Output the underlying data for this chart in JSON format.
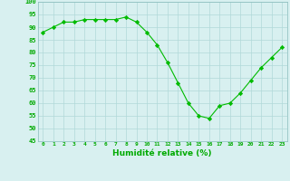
{
  "x": [
    0,
    1,
    2,
    3,
    4,
    5,
    6,
    7,
    8,
    9,
    10,
    11,
    12,
    13,
    14,
    15,
    16,
    17,
    18,
    19,
    20,
    21,
    22,
    23
  ],
  "y": [
    88,
    90,
    92,
    92,
    93,
    93,
    93,
    93,
    94,
    92,
    88,
    83,
    76,
    68,
    60,
    55,
    54,
    59,
    60,
    64,
    69,
    74,
    78,
    82
  ],
  "xlabel": "Humidité relative (%)",
  "ylim": [
    45,
    100
  ],
  "xlim": [
    -0.5,
    23.5
  ],
  "yticks": [
    45,
    50,
    55,
    60,
    65,
    70,
    75,
    80,
    85,
    90,
    95,
    100
  ],
  "xticks": [
    0,
    1,
    2,
    3,
    4,
    5,
    6,
    7,
    8,
    9,
    10,
    11,
    12,
    13,
    14,
    15,
    16,
    17,
    18,
    19,
    20,
    21,
    22,
    23
  ],
  "line_color": "#00bb00",
  "marker_color": "#00bb00",
  "bg_color": "#d8f0f0",
  "grid_color": "#b0d8d8",
  "label_color": "#00aa00"
}
